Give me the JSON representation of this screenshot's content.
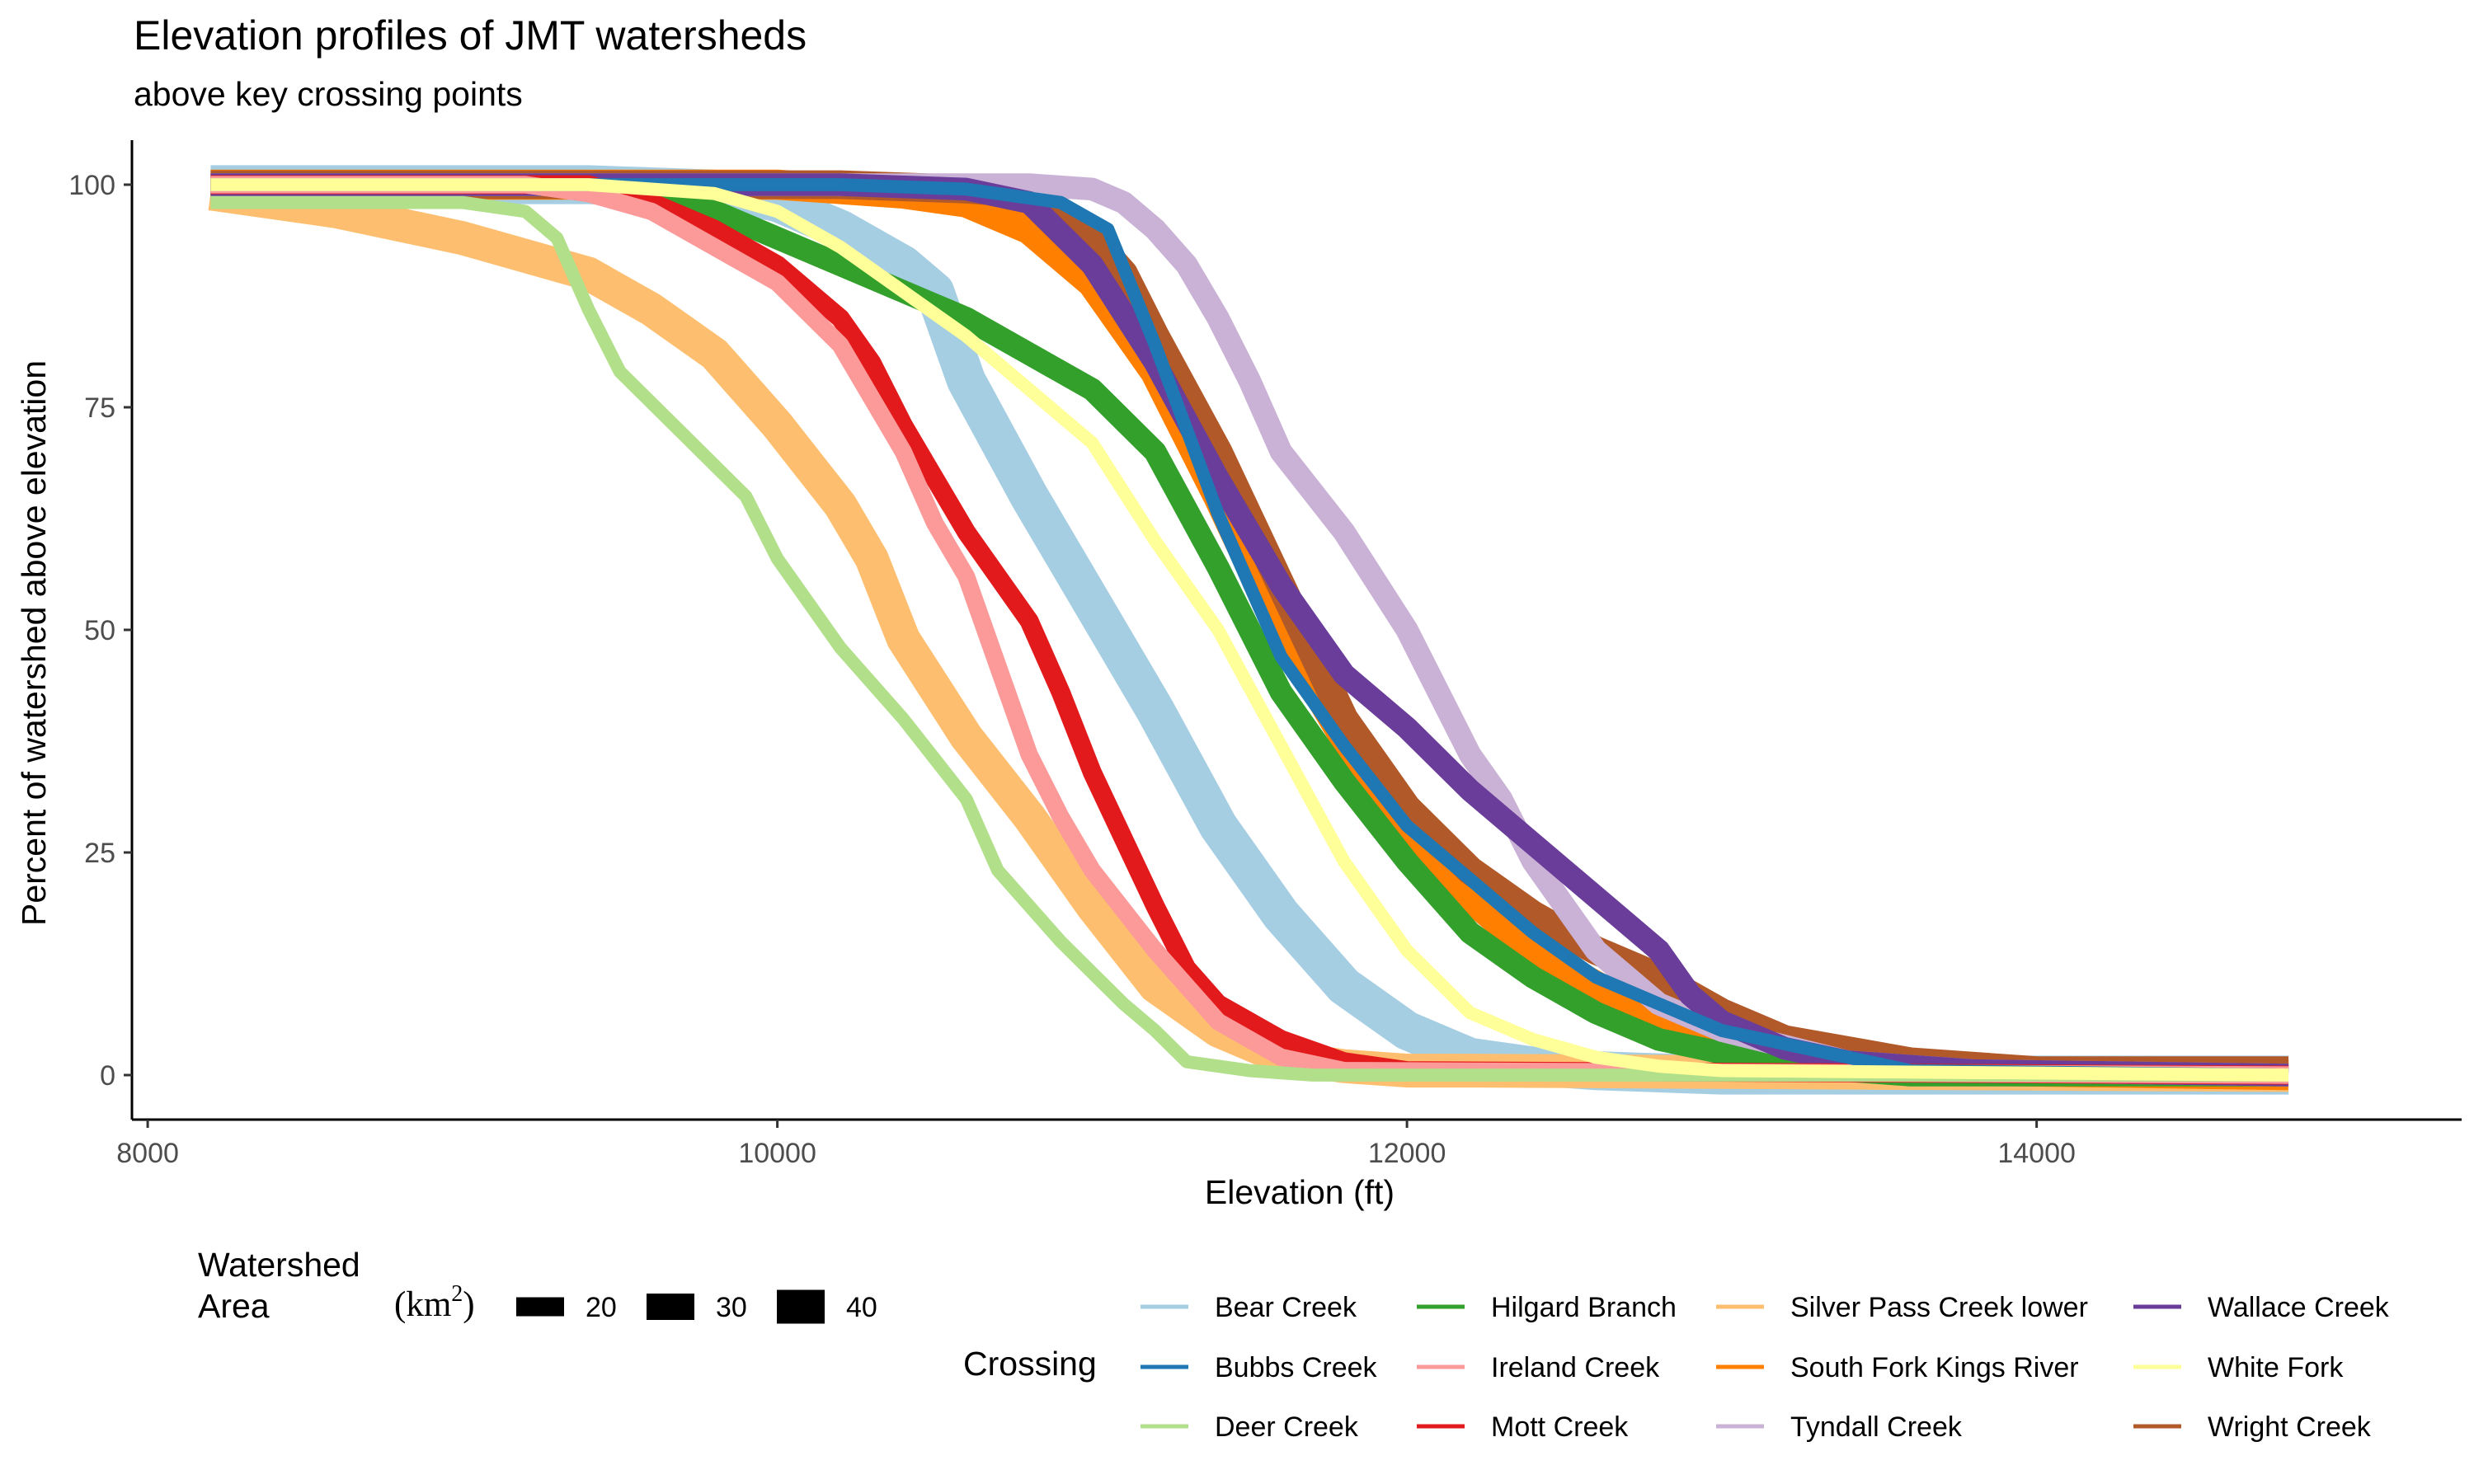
{
  "chart_data": {
    "type": "line",
    "title": "Elevation profiles of JMT watersheds",
    "subtitle": "above key crossing points",
    "xlabel": "Elevation (ft)",
    "ylabel": "Percent of watershed above elevation",
    "xlim": [
      7950,
      15350
    ],
    "ylim": [
      -5,
      105
    ],
    "xticks": [
      8000,
      10000,
      12000,
      14000
    ],
    "yticks": [
      0,
      25,
      50,
      75,
      100
    ],
    "grid": false,
    "legend_position": "bottom",
    "size_legend": {
      "title_lines": [
        "Watershed",
        "Area"
      ],
      "unit_prefix": "(km",
      "unit_exp": "2",
      "unit_suffix": ")",
      "entries": [
        {
          "label": "20",
          "value": 20
        },
        {
          "label": "30",
          "value": 30
        },
        {
          "label": "40",
          "value": 40
        }
      ]
    },
    "color_legend_title": "Crossing",
    "series": [
      {
        "name": "Bear Creek",
        "color": "#A6CEE3",
        "area_km2": 47,
        "x": [
          8200,
          8800,
          9400,
          9800,
          10000,
          10200,
          10400,
          10500,
          10600,
          10800,
          11000,
          11200,
          11400,
          11600,
          11800,
          12000,
          12200,
          12400,
          12600,
          13000,
          14800
        ],
        "y": [
          100,
          100,
          100,
          99.5,
          98,
          95,
          91,
          88,
          78,
          65,
          53,
          41,
          28,
          18,
          10,
          5,
          2,
          1,
          0.5,
          0,
          0
        ]
      },
      {
        "name": "Bubbs Creek",
        "color": "#1F78B4",
        "area_km2": 12,
        "x": [
          8200,
          9600,
          10200,
          10600,
          10900,
          11050,
          11200,
          11400,
          11600,
          11800,
          12000,
          12200,
          12400,
          12600,
          12800,
          13000,
          13400,
          13600,
          14800
        ],
        "y": [
          100,
          100,
          100,
          99.5,
          98,
          95,
          82,
          63,
          47,
          37,
          28,
          22,
          16,
          11,
          8,
          5,
          2,
          0.5,
          0
        ]
      },
      {
        "name": "Deer Creek",
        "color": "#B2DF8A",
        "area_km2": 12,
        "x": [
          8200,
          9000,
          9200,
          9300,
          9400,
          9500,
          9700,
          9900,
          10000,
          10200,
          10400,
          10600,
          10700,
          10900,
          11100,
          11200,
          11300,
          11500,
          11700,
          14800
        ],
        "y": [
          98,
          98,
          97,
          94,
          86,
          79,
          72,
          65,
          58,
          48,
          40,
          31,
          23,
          15,
          8,
          5,
          1.5,
          0.5,
          0,
          0
        ]
      },
      {
        "name": "Hilgard Branch",
        "color": "#33A02C",
        "area_km2": 25,
        "x": [
          8200,
          9400,
          9600,
          9800,
          10000,
          10200,
          10400,
          10600,
          10800,
          11000,
          11200,
          11400,
          11600,
          11800,
          12000,
          12200,
          12400,
          12600,
          12800,
          13200,
          13600,
          14800
        ],
        "y": [
          100,
          100,
          99,
          97,
          94,
          91,
          88,
          85,
          81,
          77,
          70,
          57,
          43,
          33,
          24,
          16,
          11,
          7,
          4,
          1,
          0,
          0
        ]
      },
      {
        "name": "Ireland Creek",
        "color": "#FB9A99",
        "area_km2": 18,
        "x": [
          8200,
          9200,
          9400,
          9600,
          9800,
          10000,
          10200,
          10400,
          10500,
          10600,
          10700,
          10800,
          10900,
          11000,
          11200,
          11400,
          11600,
          11800,
          14800
        ],
        "y": [
          100,
          100,
          99,
          97,
          93,
          89,
          82,
          70,
          62,
          56,
          46,
          36,
          29,
          23,
          14,
          6,
          2,
          0.5,
          0
        ]
      },
      {
        "name": "Mott Creek",
        "color": "#E31A1C",
        "area_km2": 20,
        "x": [
          8200,
          9400,
          9600,
          9800,
          10000,
          10200,
          10300,
          10400,
          10600,
          10800,
          10900,
          11000,
          11200,
          11300,
          11400,
          11600,
          11800,
          12000,
          14800
        ],
        "y": [
          100,
          100,
          98,
          95,
          91,
          85,
          80,
          73,
          61,
          51,
          43,
          34,
          19,
          12,
          8,
          4,
          1.5,
          0.5,
          0
        ]
      },
      {
        "name": "Silver Pass Creek lower",
        "color": "#FDBF6F",
        "area_km2": 40,
        "x": [
          8200,
          8600,
          9000,
          9400,
          9600,
          9800,
          10000,
          10200,
          10300,
          10400,
          10600,
          10800,
          11000,
          11200,
          11400,
          11600,
          11800,
          12000,
          12200,
          14800
        ],
        "y": [
          99,
          97,
          94,
          90,
          86,
          81,
          73,
          64,
          58,
          49,
          38,
          29,
          19,
          10,
          5,
          2,
          1,
          0.5,
          0.5,
          0
        ]
      },
      {
        "name": "South Fork Kings River",
        "color": "#FF7F00",
        "area_km2": 35,
        "x": [
          8200,
          9400,
          10000,
          10400,
          10600,
          10800,
          11000,
          11200,
          11400,
          11600,
          11800,
          12000,
          12200,
          12400,
          12600,
          12800,
          13000,
          13400,
          13800,
          14800
        ],
        "y": [
          100,
          100,
          100,
          99,
          98,
          95,
          89,
          79,
          65,
          50,
          38,
          28,
          20,
          14,
          10,
          6,
          4,
          1.5,
          0.5,
          0
        ]
      },
      {
        "name": "Tyndall Creek",
        "color": "#CAB2D6",
        "area_km2": 25,
        "x": [
          8200,
          9600,
          10200,
          10800,
          11000,
          11100,
          11200,
          11300,
          11400,
          11500,
          11600,
          11800,
          12000,
          12200,
          12300,
          12400,
          12500,
          12600,
          12800,
          13000,
          13400,
          13800,
          14800
        ],
        "y": [
          100,
          100,
          100,
          100,
          99.5,
          98,
          95,
          91,
          85,
          78,
          70,
          61,
          50,
          36,
          31,
          24,
          19,
          14,
          8,
          5,
          1.5,
          0.5,
          0
        ]
      },
      {
        "name": "Wallace Creek",
        "color": "#6A3D9A",
        "area_km2": 25,
        "x": [
          8200,
          9600,
          10200,
          10600,
          10800,
          11000,
          11200,
          11400,
          11600,
          11800,
          12000,
          12200,
          12400,
          12600,
          12800,
          12900,
          13000,
          13200,
          13400,
          13800,
          14800
        ],
        "y": [
          100,
          100,
          100,
          99.5,
          98,
          91,
          80,
          67,
          55,
          45,
          39,
          32,
          26,
          20,
          14,
          9,
          6,
          3,
          1.5,
          0.5,
          0
        ]
      },
      {
        "name": "White Fork",
        "color": "#FFFF99",
        "area_km2": 12,
        "x": [
          8200,
          9400,
          9800,
          10000,
          10200,
          10400,
          10600,
          10800,
          11000,
          11200,
          11400,
          11600,
          11800,
          12000,
          12200,
          12400,
          12600,
          12800,
          13000,
          14800
        ],
        "y": [
          100,
          100,
          99,
          97,
          93,
          88,
          83,
          77,
          71,
          60,
          50,
          37,
          24,
          14,
          7,
          4,
          2,
          1,
          0.5,
          0
        ]
      },
      {
        "name": "Wright Creek",
        "color": "#B15928",
        "area_km2": 33,
        "x": [
          8200,
          9600,
          10200,
          10600,
          10800,
          10900,
          11000,
          11100,
          11200,
          11400,
          11600,
          11800,
          12000,
          12200,
          12400,
          12600,
          12800,
          13000,
          13200,
          13600,
          14000,
          14800
        ],
        "y": [
          100,
          100,
          100,
          99.5,
          99,
          97,
          94,
          90,
          83,
          70,
          55,
          40,
          30,
          23,
          18,
          14,
          11,
          7,
          4,
          1.5,
          0.5,
          0.5
        ]
      }
    ]
  }
}
